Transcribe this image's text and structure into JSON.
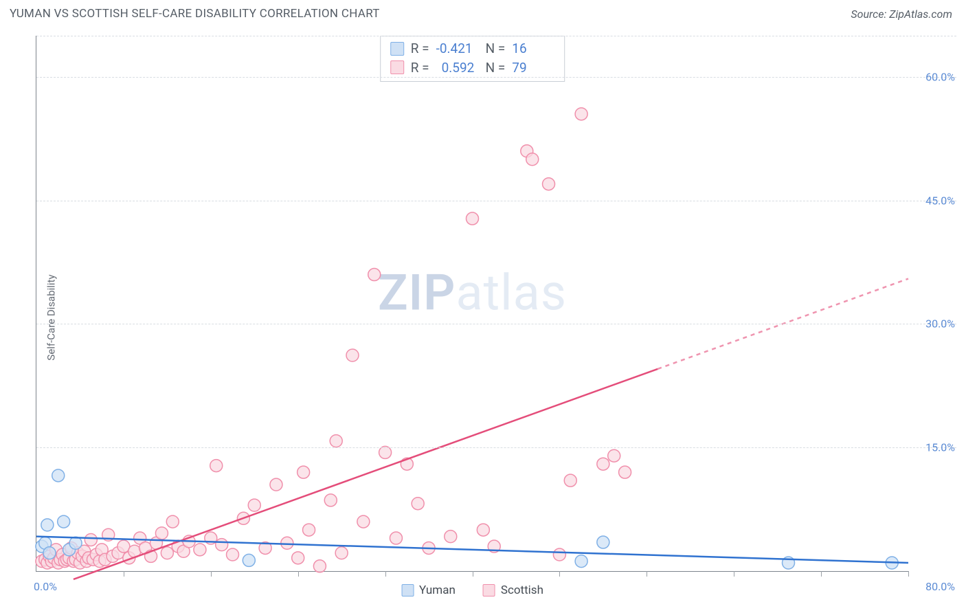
{
  "title": "YUMAN VS SCOTTISH SELF-CARE DISABILITY CORRELATION CHART",
  "source": "Source: ZipAtlas.com",
  "ylabel": "Self-Care Disability",
  "watermark_a": "ZIP",
  "watermark_b": "atlas",
  "chart": {
    "type": "scatter-with-trend",
    "xlim": [
      0,
      80
    ],
    "ylim": [
      0,
      65
    ],
    "yticks": [
      15,
      30,
      45,
      60
    ],
    "ytick_labels": [
      "15.0%",
      "30.0%",
      "45.0%",
      "60.0%"
    ],
    "xtick_positions": [
      8,
      16,
      24,
      32,
      40,
      48,
      56,
      64,
      72,
      80
    ],
    "x_min_label": "0.0%",
    "x_max_label": "80.0%",
    "grid_color": "#d8dde2",
    "axis_color": "#7d848c",
    "background_color": "#ffffff",
    "series": [
      {
        "name": "Yuman",
        "marker_color_fill": "#cfe1f5",
        "marker_color_stroke": "#7fb0e6",
        "marker_radius": 9,
        "trend_color": "#2f72d0",
        "trend_width": 2.5,
        "trend_p1": [
          0,
          4.2
        ],
        "trend_p2": [
          80,
          1.0
        ],
        "trend_dash_after_x": null,
        "R": "-0.421",
        "N": "16",
        "points": [
          [
            0.5,
            3.0
          ],
          [
            0.8,
            3.4
          ],
          [
            1.0,
            5.6
          ],
          [
            1.2,
            2.2
          ],
          [
            2.0,
            11.6
          ],
          [
            2.5,
            6.0
          ],
          [
            3.0,
            2.6
          ],
          [
            3.6,
            3.4
          ],
          [
            19.5,
            1.3
          ],
          [
            52.0,
            3.5
          ],
          [
            50.0,
            1.2
          ],
          [
            69.0,
            1.0
          ],
          [
            78.5,
            1.0
          ]
        ]
      },
      {
        "name": "Scottish",
        "marker_color_fill": "#fadbe3",
        "marker_color_stroke": "#f08fab",
        "marker_radius": 9,
        "trend_color": "#e44d7a",
        "trend_width": 2.5,
        "trend_p1": [
          3.4,
          -1.0
        ],
        "trend_p2": [
          80,
          35.5
        ],
        "trend_dash_after_x": 57,
        "R": "0.592",
        "N": "79",
        "points": [
          [
            0.5,
            1.2
          ],
          [
            0.8,
            1.4
          ],
          [
            1.0,
            1.0
          ],
          [
            1.2,
            1.8
          ],
          [
            1.4,
            1.2
          ],
          [
            1.6,
            1.6
          ],
          [
            1.8,
            2.6
          ],
          [
            2.0,
            1.0
          ],
          [
            2.2,
            1.4
          ],
          [
            2.4,
            2.0
          ],
          [
            2.6,
            1.2
          ],
          [
            2.8,
            1.4
          ],
          [
            3.0,
            1.6
          ],
          [
            3.2,
            2.8
          ],
          [
            3.4,
            1.2
          ],
          [
            3.6,
            1.4
          ],
          [
            3.8,
            2.2
          ],
          [
            4.0,
            1.0
          ],
          [
            4.2,
            1.8
          ],
          [
            4.4,
            2.4
          ],
          [
            4.6,
            1.2
          ],
          [
            4.8,
            1.6
          ],
          [
            5.0,
            3.8
          ],
          [
            5.2,
            1.4
          ],
          [
            5.5,
            2.0
          ],
          [
            5.8,
            1.2
          ],
          [
            6.0,
            2.6
          ],
          [
            6.3,
            1.4
          ],
          [
            6.6,
            4.4
          ],
          [
            7.0,
            1.8
          ],
          [
            7.5,
            2.2
          ],
          [
            8.0,
            3.0
          ],
          [
            8.5,
            1.6
          ],
          [
            9.0,
            2.4
          ],
          [
            9.5,
            4.0
          ],
          [
            10.0,
            2.8
          ],
          [
            10.5,
            1.8
          ],
          [
            11.0,
            3.4
          ],
          [
            11.5,
            4.6
          ],
          [
            12.0,
            2.2
          ],
          [
            12.5,
            6.0
          ],
          [
            13.0,
            3.0
          ],
          [
            13.5,
            2.4
          ],
          [
            14.0,
            3.6
          ],
          [
            15.0,
            2.6
          ],
          [
            16.0,
            4.0
          ],
          [
            16.5,
            12.8
          ],
          [
            17.0,
            3.2
          ],
          [
            18.0,
            2.0
          ],
          [
            19.0,
            6.4
          ],
          [
            20.0,
            8.0
          ],
          [
            21.0,
            2.8
          ],
          [
            22.0,
            10.5
          ],
          [
            23.0,
            3.4
          ],
          [
            24.0,
            1.6
          ],
          [
            24.5,
            12.0
          ],
          [
            25.0,
            5.0
          ],
          [
            26.0,
            0.6
          ],
          [
            27.0,
            8.6
          ],
          [
            27.5,
            15.8
          ],
          [
            28.0,
            2.2
          ],
          [
            29.0,
            26.2
          ],
          [
            30.0,
            6.0
          ],
          [
            31.0,
            36.0
          ],
          [
            32.0,
            14.4
          ],
          [
            33.0,
            4.0
          ],
          [
            34.0,
            13.0
          ],
          [
            35.0,
            8.2
          ],
          [
            36.0,
            2.8
          ],
          [
            38.0,
            4.2
          ],
          [
            40.0,
            42.8
          ],
          [
            41.0,
            5.0
          ],
          [
            42.0,
            3.0
          ],
          [
            45.0,
            51.0
          ],
          [
            45.5,
            50.0
          ],
          [
            47.0,
            47.0
          ],
          [
            48.0,
            2.0
          ],
          [
            49.0,
            11.0
          ],
          [
            50.0,
            55.5
          ],
          [
            52.0,
            13.0
          ],
          [
            53.0,
            14.0
          ],
          [
            54.0,
            12.0
          ]
        ]
      }
    ]
  },
  "legend": {
    "item1": "Yuman",
    "item2": "Scottish"
  },
  "stats_labels": {
    "R": "R =",
    "N": "N ="
  }
}
